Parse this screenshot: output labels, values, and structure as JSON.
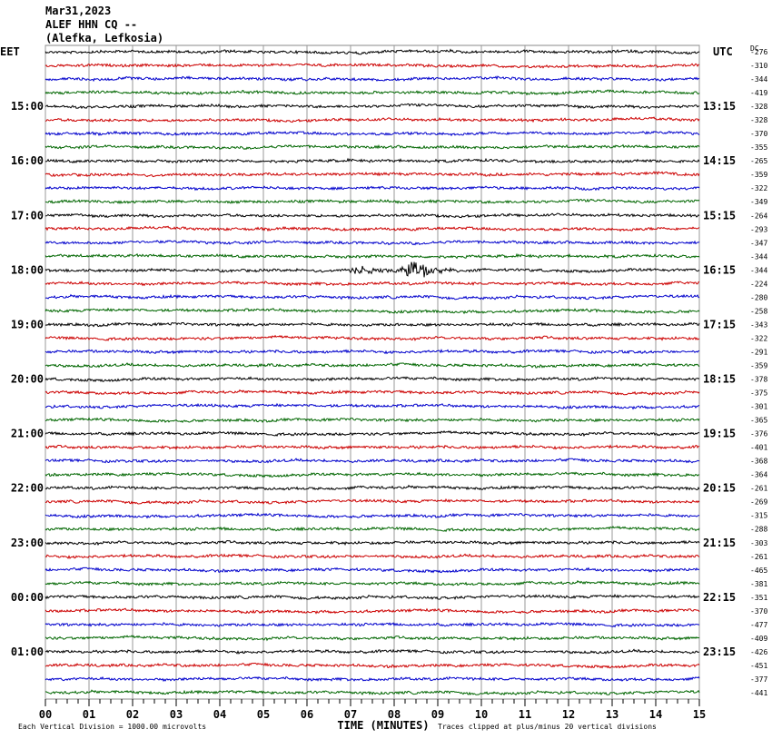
{
  "header": {
    "date": "Mar31,2023",
    "station": "ALEF HHN CQ --",
    "location": "(Alefka, Lefkosia)"
  },
  "left_label": "EET",
  "right_label": "UTC",
  "dc_label": "DC",
  "left_times": [
    "15:00",
    "16:00",
    "17:00",
    "18:00",
    "19:00",
    "20:00",
    "21:00",
    "22:00",
    "23:00",
    "00:00",
    "01:00"
  ],
  "right_times": [
    "13:15",
    "14:15",
    "15:15",
    "16:15",
    "17:15",
    "18:15",
    "19:15",
    "20:15",
    "21:15",
    "22:15",
    "23:15"
  ],
  "dc_offsets": [
    -276,
    -310,
    -344,
    -419,
    -328,
    -328,
    -370,
    -355,
    -265,
    -359,
    -322,
    -349,
    -264,
    -293,
    -347,
    -344,
    -344,
    -224,
    -280,
    -258,
    -343,
    -322,
    -291,
    -359,
    -378,
    -375,
    -301,
    -365,
    -376,
    -401,
    -368,
    -364,
    -261,
    -269,
    -315,
    -288,
    -303,
    -261,
    -465,
    -381,
    -351,
    -370,
    -477,
    -409,
    -426,
    -451,
    -377,
    -441
  ],
  "x_ticks": [
    "00",
    "01",
    "02",
    "03",
    "04",
    "05",
    "06",
    "07",
    "08",
    "09",
    "10",
    "11",
    "12",
    "13",
    "14",
    "15"
  ],
  "x_title": "TIME (MINUTES)",
  "footer_left": "Each Vertical Division = 1000.00 microvolts",
  "footer_right": "Traces clipped at plus/minus 20 vertical divisions",
  "trace_colors": [
    "#000000",
    "#cc0000",
    "#0000cc",
    "#006600"
  ]
}
